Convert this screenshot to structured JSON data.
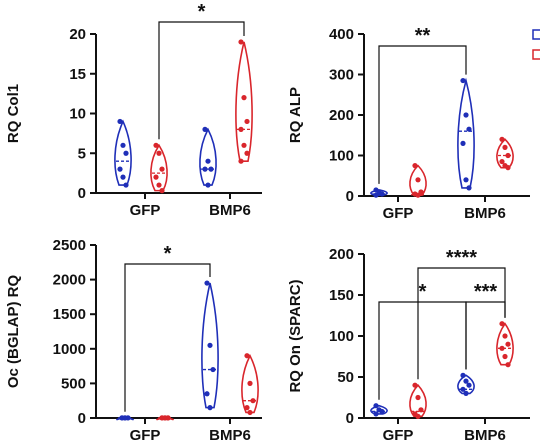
{
  "colors": {
    "gfp": "#1f2fb8",
    "bmp6": "#d9262c",
    "axis": "#111111"
  },
  "chart_data": [
    {
      "type": "violin",
      "ylabel": "RQ Col1",
      "ylim": [
        0,
        20
      ],
      "yticks": [
        "0",
        "5",
        "10",
        "15",
        "20"
      ],
      "categories": [
        "GFP",
        "BMP6"
      ],
      "series": [
        {
          "color": "#1f2fb8",
          "values": [
            [
              9,
              6,
              5,
              3,
              2,
              1
            ],
            [
              8,
              4,
              3,
              3,
              1
            ]
          ]
        },
        {
          "color": "#d9262c",
          "values": [
            [
              6,
              5,
              3,
              2,
              1,
              0.3
            ],
            [
              19,
              12,
              9,
              8,
              6,
              5,
              4
            ]
          ]
        }
      ],
      "medians": [
        [
          4,
          2.5
        ],
        [
          3,
          8
        ]
      ],
      "comparisons": [
        {
          "from": [
            0,
            1
          ],
          "to": [
            1,
            1
          ],
          "label": "*"
        }
      ]
    },
    {
      "type": "violin",
      "ylabel": "RQ ALP",
      "ylim": [
        0,
        400
      ],
      "yticks": [
        "0",
        "100",
        "200",
        "300",
        "400"
      ],
      "categories": [
        "GFP",
        "BMP6"
      ],
      "series": [
        {
          "color": "#1f2fb8",
          "values": [
            [
              15,
              10,
              5,
              2
            ],
            [
              285,
              200,
              165,
              130,
              40,
              20
            ]
          ]
        },
        {
          "color": "#d9262c",
          "values": [
            [
              75,
              40,
              10,
              5,
              2
            ],
            [
              140,
              120,
              100,
              85,
              75,
              70
            ]
          ]
        }
      ],
      "medians": [
        [
          5,
          3
        ],
        [
          160,
          100
        ]
      ],
      "comparisons": [
        {
          "from": [
            0,
            0
          ],
          "to": [
            1,
            0
          ],
          "label": "**"
        }
      ]
    },
    {
      "type": "violin",
      "ylabel": "Oc (BGLAP) RQ",
      "ylim": [
        0,
        2500
      ],
      "yticks": [
        "0",
        "500",
        "1000",
        "1500",
        "2000",
        "2500"
      ],
      "categories": [
        "GFP",
        "BMP6"
      ],
      "series": [
        {
          "color": "#1f2fb8",
          "values": [
            [
              3,
              2,
              2,
              1,
              1
            ],
            [
              1950,
              1050,
              700,
              350,
              150
            ]
          ]
        },
        {
          "color": "#d9262c",
          "values": [
            [
              3,
              2,
              2,
              1,
              1,
              1
            ],
            [
              900,
              500,
              250,
              150,
              80
            ]
          ]
        }
      ],
      "medians": [
        [
          2,
          2
        ],
        [
          700,
          250
        ]
      ],
      "comparisons": [
        {
          "from": [
            0,
            0
          ],
          "to": [
            1,
            0
          ],
          "label": "*"
        }
      ]
    },
    {
      "type": "violin",
      "ylabel": "RQ On (SPARC)",
      "ylim": [
        0,
        200
      ],
      "yticks": [
        "0",
        "50",
        "100",
        "150",
        "200"
      ],
      "categories": [
        "GFP",
        "BMP6"
      ],
      "series": [
        {
          "color": "#1f2fb8",
          "values": [
            [
              15,
              10,
              8,
              5
            ],
            [
              52,
              45,
              40,
              35,
              30
            ]
          ]
        },
        {
          "color": "#d9262c",
          "values": [
            [
              40,
              25,
              10,
              5,
              2
            ],
            [
              115,
              100,
              90,
              85,
              75,
              65
            ]
          ]
        }
      ],
      "medians": [
        [
          8,
          8
        ],
        [
          35,
          85
        ]
      ],
      "comparisons": [
        {
          "from": [
            0,
            0
          ],
          "to": [
            1,
            0
          ],
          "label": "*"
        },
        {
          "from": [
            0,
            1
          ],
          "to": [
            1,
            1
          ],
          "label": "****"
        },
        {
          "from": [
            1,
            0
          ],
          "to": [
            1,
            1
          ],
          "label": "***"
        }
      ]
    }
  ]
}
